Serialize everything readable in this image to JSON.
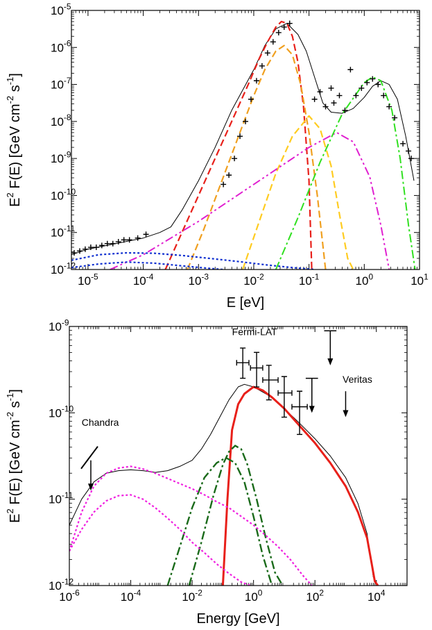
{
  "chart_data": [
    {
      "type": "line",
      "xlabel": "E [eV]",
      "ylabel_main": "E",
      "ylabel_sup": "2",
      "ylabel_mid": " F(E) [GeV cm",
      "ylabel_sup2": "-2",
      "ylabel_end": " s",
      "ylabel_sup3": "-1",
      "ylabel_close": "]",
      "xscale": "log",
      "yscale": "log",
      "xlim_exp": [
        -5.3,
        1
      ],
      "ylim_exp": [
        -12,
        -5
      ],
      "x_ticks": [
        {
          "base": "10",
          "exp": "-5",
          "v": -5
        },
        {
          "base": "10",
          "exp": "-4",
          "v": -4
        },
        {
          "base": "10",
          "exp": "-3",
          "v": -3
        },
        {
          "base": "10",
          "exp": "-2",
          "v": -2
        },
        {
          "base": "10",
          "exp": "-1",
          "v": -1
        },
        {
          "base": "10",
          "exp": "0",
          "v": 0
        },
        {
          "base": "10",
          "exp": "1",
          "v": 1
        }
      ],
      "y_ticks": [
        {
          "base": "10",
          "exp": "-12",
          "v": -12
        },
        {
          "base": "10",
          "exp": "-11",
          "v": -11
        },
        {
          "base": "10",
          "exp": "-10",
          "v": -10
        },
        {
          "base": "10",
          "exp": "-9",
          "v": -9
        },
        {
          "base": "10",
          "exp": "-8",
          "v": -8
        },
        {
          "base": "10",
          "exp": "-7",
          "v": -7
        },
        {
          "base": "10",
          "exp": "-6",
          "v": -6
        },
        {
          "base": "10",
          "exp": "-5",
          "v": -5
        }
      ],
      "series": [
        {
          "color": "#000000",
          "dash": "",
          "width": 1,
          "x": [
            -5.3,
            -5.0,
            -4.5,
            -4.0,
            -3.7,
            -3.5,
            -3.3,
            -3.0,
            -2.7,
            -2.4,
            -2.0,
            -1.8,
            -1.6,
            -1.4,
            -1.2,
            -1.05,
            -0.9,
            -0.75,
            -0.6,
            -0.4,
            -0.2,
            0.0,
            0.15,
            0.3,
            0.45,
            0.6,
            0.75,
            0.9
          ],
          "y": [
            -11.6,
            -11.45,
            -11.3,
            -11.15,
            -11.0,
            -10.85,
            -10.4,
            -9.6,
            -8.7,
            -7.7,
            -6.6,
            -5.95,
            -5.5,
            -5.35,
            -5.65,
            -6.1,
            -6.8,
            -7.5,
            -7.75,
            -7.78,
            -7.65,
            -7.35,
            -7.05,
            -6.9,
            -7.0,
            -7.4,
            -8.4,
            -9.6
          ]
        },
        {
          "color": "#e8201a",
          "dash": "10,5",
          "width": 2.2,
          "x": [
            -3.6,
            -3.3,
            -3.0,
            -2.7,
            -2.4,
            -2.1,
            -1.9,
            -1.75,
            -1.6,
            -1.5,
            -1.4,
            -1.3,
            -1.2,
            -1.1,
            -1.0,
            -0.95
          ],
          "y": [
            -12,
            -11.0,
            -10.0,
            -9.0,
            -8.0,
            -7.0,
            -6.3,
            -5.85,
            -5.45,
            -5.3,
            -5.35,
            -5.7,
            -6.4,
            -7.6,
            -9.6,
            -12
          ]
        },
        {
          "color": "#f0a020",
          "dash": "10,5",
          "width": 2.2,
          "x": [
            -3.2,
            -2.9,
            -2.6,
            -2.3,
            -2.0,
            -1.8,
            -1.6,
            -1.45,
            -1.3,
            -1.15,
            -1.0,
            -0.85,
            -0.7
          ],
          "y": [
            -12,
            -10.9,
            -9.7,
            -8.5,
            -7.3,
            -6.6,
            -6.1,
            -5.95,
            -6.2,
            -7.0,
            -8.3,
            -10.0,
            -12
          ]
        },
        {
          "color": "#ffcc20",
          "dash": "10,5",
          "width": 2.2,
          "x": [
            -2.2,
            -1.9,
            -1.6,
            -1.3,
            -1.0,
            -0.8,
            -0.6,
            -0.45,
            -0.3,
            -0.2
          ],
          "y": [
            -12,
            -10.7,
            -9.4,
            -8.4,
            -7.85,
            -8.2,
            -9.2,
            -10.5,
            -11.7,
            -12
          ]
        },
        {
          "color": "#e020d0",
          "dash": "12,4,3,4,3,4",
          "width": 2,
          "x": [
            -4.6,
            -4.0,
            -3.0,
            -2.0,
            -1.0,
            -0.5,
            -0.2,
            0.1,
            0.3,
            0.45
          ],
          "y": [
            -12,
            -11.6,
            -10.7,
            -9.7,
            -8.7,
            -8.3,
            -8.55,
            -9.5,
            -10.8,
            -12
          ]
        },
        {
          "color": "#30e020",
          "dash": "12,4,3,4",
          "width": 2,
          "x": [
            -1.6,
            -1.2,
            -0.8,
            -0.4,
            0.0,
            0.15,
            0.3,
            0.5,
            0.65,
            0.8,
            0.92
          ],
          "y": [
            -12,
            -10.6,
            -9.1,
            -7.8,
            -6.95,
            -6.8,
            -6.9,
            -7.7,
            -9.0,
            -10.8,
            -12
          ]
        },
        {
          "color": "#1030d0",
          "dash": "3,3",
          "width": 2.2,
          "x": [
            -5.3,
            -4.8,
            -4.3,
            -3.8,
            -3.3,
            -2.8,
            -2.3,
            -1.8,
            -1.3,
            -0.9
          ],
          "y": [
            -11.75,
            -11.6,
            -11.55,
            -11.56,
            -11.62,
            -11.7,
            -11.78,
            -11.87,
            -11.95,
            -12
          ]
        },
        {
          "color": "#1030d0",
          "dash": "3,3",
          "width": 2.2,
          "x": [
            -5.3,
            -4.8,
            -4.3,
            -3.8,
            -3.3,
            -2.8,
            -2.55
          ],
          "y": [
            -11.95,
            -11.85,
            -11.8,
            -11.83,
            -11.9,
            -11.97,
            -12
          ]
        }
      ],
      "points": {
        "x": [
          -5.25,
          -5.15,
          -5.05,
          -4.95,
          -4.85,
          -4.75,
          -4.65,
          -4.55,
          -4.45,
          -4.35,
          -4.25,
          -4.1,
          -3.95,
          -2.55,
          -2.45,
          -2.35,
          -2.25,
          -2.15,
          -2.05,
          -1.95,
          -1.85,
          -1.75,
          -1.65,
          -1.55,
          -1.45,
          -1.35,
          -0.9,
          -0.8,
          -0.7,
          -0.6,
          -0.55,
          -0.45,
          -0.35,
          -0.25,
          -0.15,
          -0.05,
          0.05,
          0.15,
          0.25,
          0.35,
          0.45,
          0.55,
          0.7,
          0.8,
          0.85
        ],
        "y": [
          -11.55,
          -11.5,
          -11.45,
          -11.4,
          -11.4,
          -11.35,
          -11.3,
          -11.3,
          -11.25,
          -11.2,
          -11.2,
          -11.15,
          -11.05,
          -9.7,
          -9.45,
          -9.0,
          -8.4,
          -8.0,
          -7.4,
          -6.9,
          -6.5,
          -6.15,
          -5.85,
          -5.6,
          -5.45,
          -5.35,
          -7.4,
          -7.2,
          -7.6,
          -7.1,
          -7.5,
          -7.3,
          -7.7,
          -6.6,
          -7.3,
          -7.1,
          -6.95,
          -6.85,
          -7.0,
          -7.3,
          -7.6,
          -7.9,
          -8.6,
          -8.8,
          -9.0
        ]
      }
    },
    {
      "type": "line",
      "xlabel": "Energy [GeV]",
      "ylabel_main": "E",
      "ylabel_sup": "2",
      "ylabel_mid": " F(E) [GeV cm",
      "ylabel_sup2": "-2",
      "ylabel_end": " s",
      "ylabel_sup3": "-1",
      "ylabel_close": "]",
      "xscale": "log",
      "yscale": "log",
      "xlim_exp": [
        -6,
        5
      ],
      "ylim_exp": [
        -12,
        -9
      ],
      "x_ticks": [
        {
          "base": "10",
          "exp": "-6",
          "v": -6
        },
        {
          "base": "10",
          "exp": "-4",
          "v": -4
        },
        {
          "base": "10",
          "exp": "-2",
          "v": -2
        },
        {
          "base": "10",
          "exp": "0",
          "v": 0
        },
        {
          "base": "10",
          "exp": "2",
          "v": 2
        },
        {
          "base": "10",
          "exp": "4",
          "v": 4
        }
      ],
      "y_ticks": [
        {
          "base": "10",
          "exp": "-12",
          "v": -12
        },
        {
          "base": "10",
          "exp": "-11",
          "v": -11
        },
        {
          "base": "10",
          "exp": "-10",
          "v": -10
        },
        {
          "base": "10",
          "exp": "-9",
          "v": -9
        }
      ],
      "annotations": [
        {
          "text": "Chandra",
          "x": -5.6,
          "y": -10.15
        },
        {
          "text": "Fermi-LAT",
          "x": -0.7,
          "y": -9.1
        },
        {
          "text": "Veritas",
          "x": 2.9,
          "y": -9.65
        }
      ],
      "series": [
        {
          "color": "#000000",
          "dash": "",
          "width": 1,
          "x": [
            -6.0,
            -5.6,
            -5.2,
            -4.8,
            -4.4,
            -4.0,
            -3.6,
            -3.2,
            -2.8,
            -2.4,
            -2.0,
            -1.7,
            -1.4,
            -1.1,
            -0.8,
            -0.5,
            -0.3,
            0.0,
            0.5,
            1.0,
            1.5,
            2.0,
            2.5,
            3.0,
            3.4,
            3.7,
            3.9,
            4.05,
            4.2
          ],
          "y": [
            -11.3,
            -11.0,
            -10.8,
            -10.7,
            -10.67,
            -10.66,
            -10.67,
            -10.69,
            -10.67,
            -10.62,
            -10.55,
            -10.42,
            -10.25,
            -10.05,
            -9.85,
            -9.7,
            -9.67,
            -9.7,
            -9.8,
            -9.95,
            -10.12,
            -10.3,
            -10.5,
            -10.75,
            -11.05,
            -11.4,
            -11.9,
            -12,
            -12
          ]
        },
        {
          "color": "#e8201a",
          "dash": "",
          "width": 3,
          "x": [
            -1.0,
            -0.85,
            -0.7,
            -0.5,
            -0.3,
            0.0,
            0.3,
            0.6,
            1.0,
            1.5,
            2.0,
            2.5,
            3.0,
            3.4,
            3.7,
            3.85,
            3.95,
            4.05
          ],
          "y": [
            -12,
            -11.0,
            -10.2,
            -9.9,
            -9.78,
            -9.7,
            -9.74,
            -9.82,
            -9.95,
            -10.15,
            -10.35,
            -10.58,
            -10.85,
            -11.15,
            -11.45,
            -11.75,
            -11.95,
            -12
          ]
        },
        {
          "color": "#1a6a1a",
          "dash": "12,4,3,4",
          "width": 2.4,
          "x": [
            -2.8,
            -2.4,
            -2.0,
            -1.6,
            -1.2,
            -0.9,
            -0.6,
            -0.3,
            0.0,
            0.3,
            0.6
          ],
          "y": [
            -12,
            -11.55,
            -11.1,
            -10.75,
            -10.58,
            -10.52,
            -10.58,
            -10.8,
            -11.2,
            -11.65,
            -12
          ]
        },
        {
          "color": "#1a6a1a",
          "dash": "12,4,3,4",
          "width": 2.4,
          "x": [
            -2.1,
            -1.7,
            -1.3,
            -1.0,
            -0.8,
            -0.6,
            -0.4,
            -0.2,
            0.1,
            0.4,
            0.7,
            0.95
          ],
          "y": [
            -12,
            -11.5,
            -10.95,
            -10.6,
            -10.45,
            -10.38,
            -10.42,
            -10.6,
            -11.0,
            -11.45,
            -11.85,
            -12
          ]
        },
        {
          "color": "#f020e0",
          "dash": "3,3",
          "width": 2.2,
          "x": [
            -6.0,
            -5.6,
            -5.2,
            -4.8,
            -4.4,
            -4.0,
            -3.6,
            -3.2,
            -2.8,
            -2.4,
            -2.0,
            -1.6,
            -1.2,
            -0.8,
            -0.4,
            0.0,
            0.4,
            0.8,
            1.2,
            1.6,
            1.9
          ],
          "y": [
            -11.6,
            -11.15,
            -10.85,
            -10.7,
            -10.64,
            -10.62,
            -10.65,
            -10.7,
            -10.76,
            -10.82,
            -10.88,
            -10.95,
            -11.03,
            -11.1,
            -11.2,
            -11.3,
            -11.42,
            -11.55,
            -11.7,
            -11.88,
            -12
          ]
        },
        {
          "color": "#f020e0",
          "dash": "3,3",
          "width": 2.2,
          "x": [
            -6.0,
            -5.6,
            -5.2,
            -4.8,
            -4.4,
            -4.0,
            -3.6,
            -3.2,
            -2.8,
            -2.4,
            -2.0,
            -1.6,
            -1.2,
            -0.8,
            -0.4,
            -0.1
          ],
          "y": [
            -11.6,
            -11.35,
            -11.15,
            -11.02,
            -10.96,
            -10.95,
            -11.0,
            -11.1,
            -11.22,
            -11.35,
            -11.5,
            -11.62,
            -11.75,
            -11.86,
            -11.96,
            -12
          ]
        }
      ],
      "errorbars": [
        {
          "x": -0.35,
          "y": -9.42,
          "xl": -0.55,
          "xh": -0.15,
          "yl": -9.6,
          "yh": -9.25
        },
        {
          "x": 0.1,
          "y": -9.48,
          "xl": -0.1,
          "xh": 0.3,
          "yl": -9.7,
          "yh": -9.3
        },
        {
          "x": 0.5,
          "y": -9.62,
          "xl": 0.3,
          "xh": 0.8,
          "yl": -9.85,
          "yh": -9.45
        },
        {
          "x": 1.0,
          "y": -9.77,
          "xl": 0.8,
          "xh": 1.25,
          "yl": -10.05,
          "yh": -9.58
        },
        {
          "x": 1.5,
          "y": -9.93,
          "xl": 1.25,
          "xh": 1.75,
          "yl": -10.25,
          "yh": -9.75
        }
      ],
      "upper_limits": [
        {
          "x": 1.9,
          "y": -9.6,
          "xl": 1.7,
          "xh": 2.1,
          "len": 0.4
        },
        {
          "x": 2.5,
          "y": -9.05,
          "xl": 2.3,
          "xh": 2.7,
          "len": 0.4
        },
        {
          "x": 3.0,
          "y": -9.75,
          "xl": 3.0,
          "xh": 3.0,
          "len": 0.3
        },
        {
          "x": -5.3,
          "y": -10.55,
          "xl": -5.3,
          "xh": -5.3,
          "len": 0.35
        }
      ]
    }
  ]
}
